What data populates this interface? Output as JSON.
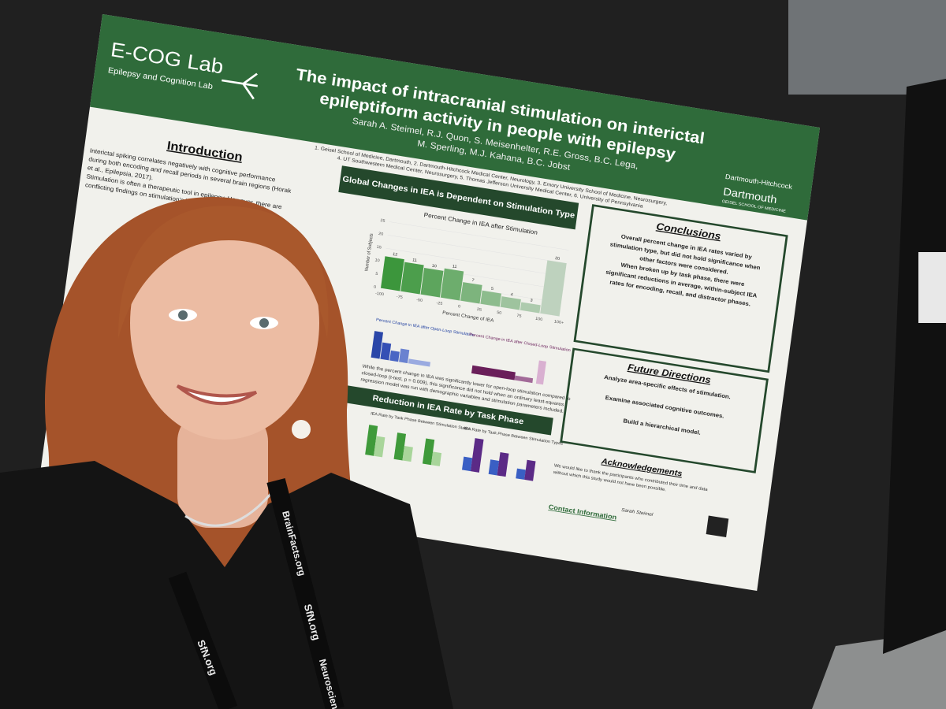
{
  "poster": {
    "lab_name": "E-COG Lab",
    "lab_subtitle": "Epilepsy and Cognition Lab",
    "title_lines": [
      "The impact of intracranial stimulation on interictal",
      "epileptiform activity in people with epilepsy"
    ],
    "authors_lines": [
      "Sarah A. Steimel, R.J. Quon, S. Meisenhelter, R.E. Gross, B.C. Lega,",
      "M. Sperling, M.J. Kahana, B.C. Jobst"
    ],
    "affiliations_lines": [
      "1. Geisel School of Medicine, Dartmouth, 2. Dartmouth-Hitchcock Medical Center, Neurology, 3. Emory University School of Medicine, Neurosurgery,",
      "4. UT Southwestern Medical Center, Neurosurgery, 5. Thomas Jefferson University Medical Center, 6. University of Pennsylvania"
    ],
    "logos": [
      "Dartmouth-Hitchcock",
      "Dartmouth",
      "GEISEL SCHOOL OF MEDICINE"
    ],
    "introduction": {
      "heading": "Introduction",
      "lines": [
        "Interictal spiking correlates negatively with cognitive performance",
        "during both encoding and recall periods in several brain regions (Horak",
        "et al., Epilepsia, 2017).",
        "Stimulation is often a therapeutic tool in epilepsy. However, there are",
        "conflicting findings on stimulation's impact on memory"
      ]
    },
    "banner_1": "Global Changes in IEA is Dependent on Stimulation Type",
    "histogram": {
      "title": "Percent Change in IEA after Stimulation",
      "x_label": "Percent Change of IEA",
      "y_label": "Number of Subjects",
      "values": [
        12,
        11,
        10,
        11,
        7,
        5,
        4,
        3,
        20
      ],
      "ylim": [
        0,
        25
      ],
      "yticks": [
        0,
        5,
        10,
        15,
        20,
        25
      ],
      "xticks": [
        "-100",
        "-75",
        "-50",
        "-25",
        "0",
        "25",
        "50",
        "75",
        "100",
        "100+"
      ]
    },
    "sub_chart_titles": [
      "Percent Change in IEA after Open-Loop Stimulation",
      "Percent Change in IEA after Closed-Loop Stimulation"
    ],
    "middle_text": [
      "While the percent change in IEA was significantly lower for open-loop stimulation compared to",
      "closed-loop (t-test, p = 0.009), this significance did not hold when an ordinary least-squares",
      "regression model was run with demographic variables and stimulation parameters included."
    ],
    "banner_2": "Reduction in IEA Rate by Task Phase",
    "task_chart_titles": [
      "IEA Rate by Task Phase Between Stimulation States",
      "IEA Rate by Task Phase Between Stimulation Types"
    ],
    "conclusions": {
      "heading": "Conclusions",
      "lines": [
        "Overall percent change in IEA rates varied by",
        "stimulation type, but did not hold significance when",
        "other factors were considered.",
        "When broken up by task phase, there were",
        "significant reductions in average, within-subject IEA",
        "rates for encoding, recall, and distractor phases."
      ]
    },
    "future": {
      "heading": "Future Directions",
      "lines": [
        "Analyze area-specific effects of stimulation.",
        "Examine associated cognitive outcomes.",
        "Build a hierarchical model."
      ]
    },
    "acknowledgements": {
      "heading": "Acknowledgements",
      "lines": [
        "We would like to thank the participants who contributed their time and data",
        "without which this study would not have been possible."
      ]
    },
    "contact": {
      "heading": "Contact Information",
      "name": "Sarah Steimel"
    }
  },
  "lanyard": [
    "SfN.org",
    "BrainFacts.org",
    "SfN.org",
    "Neuroscience"
  ]
}
